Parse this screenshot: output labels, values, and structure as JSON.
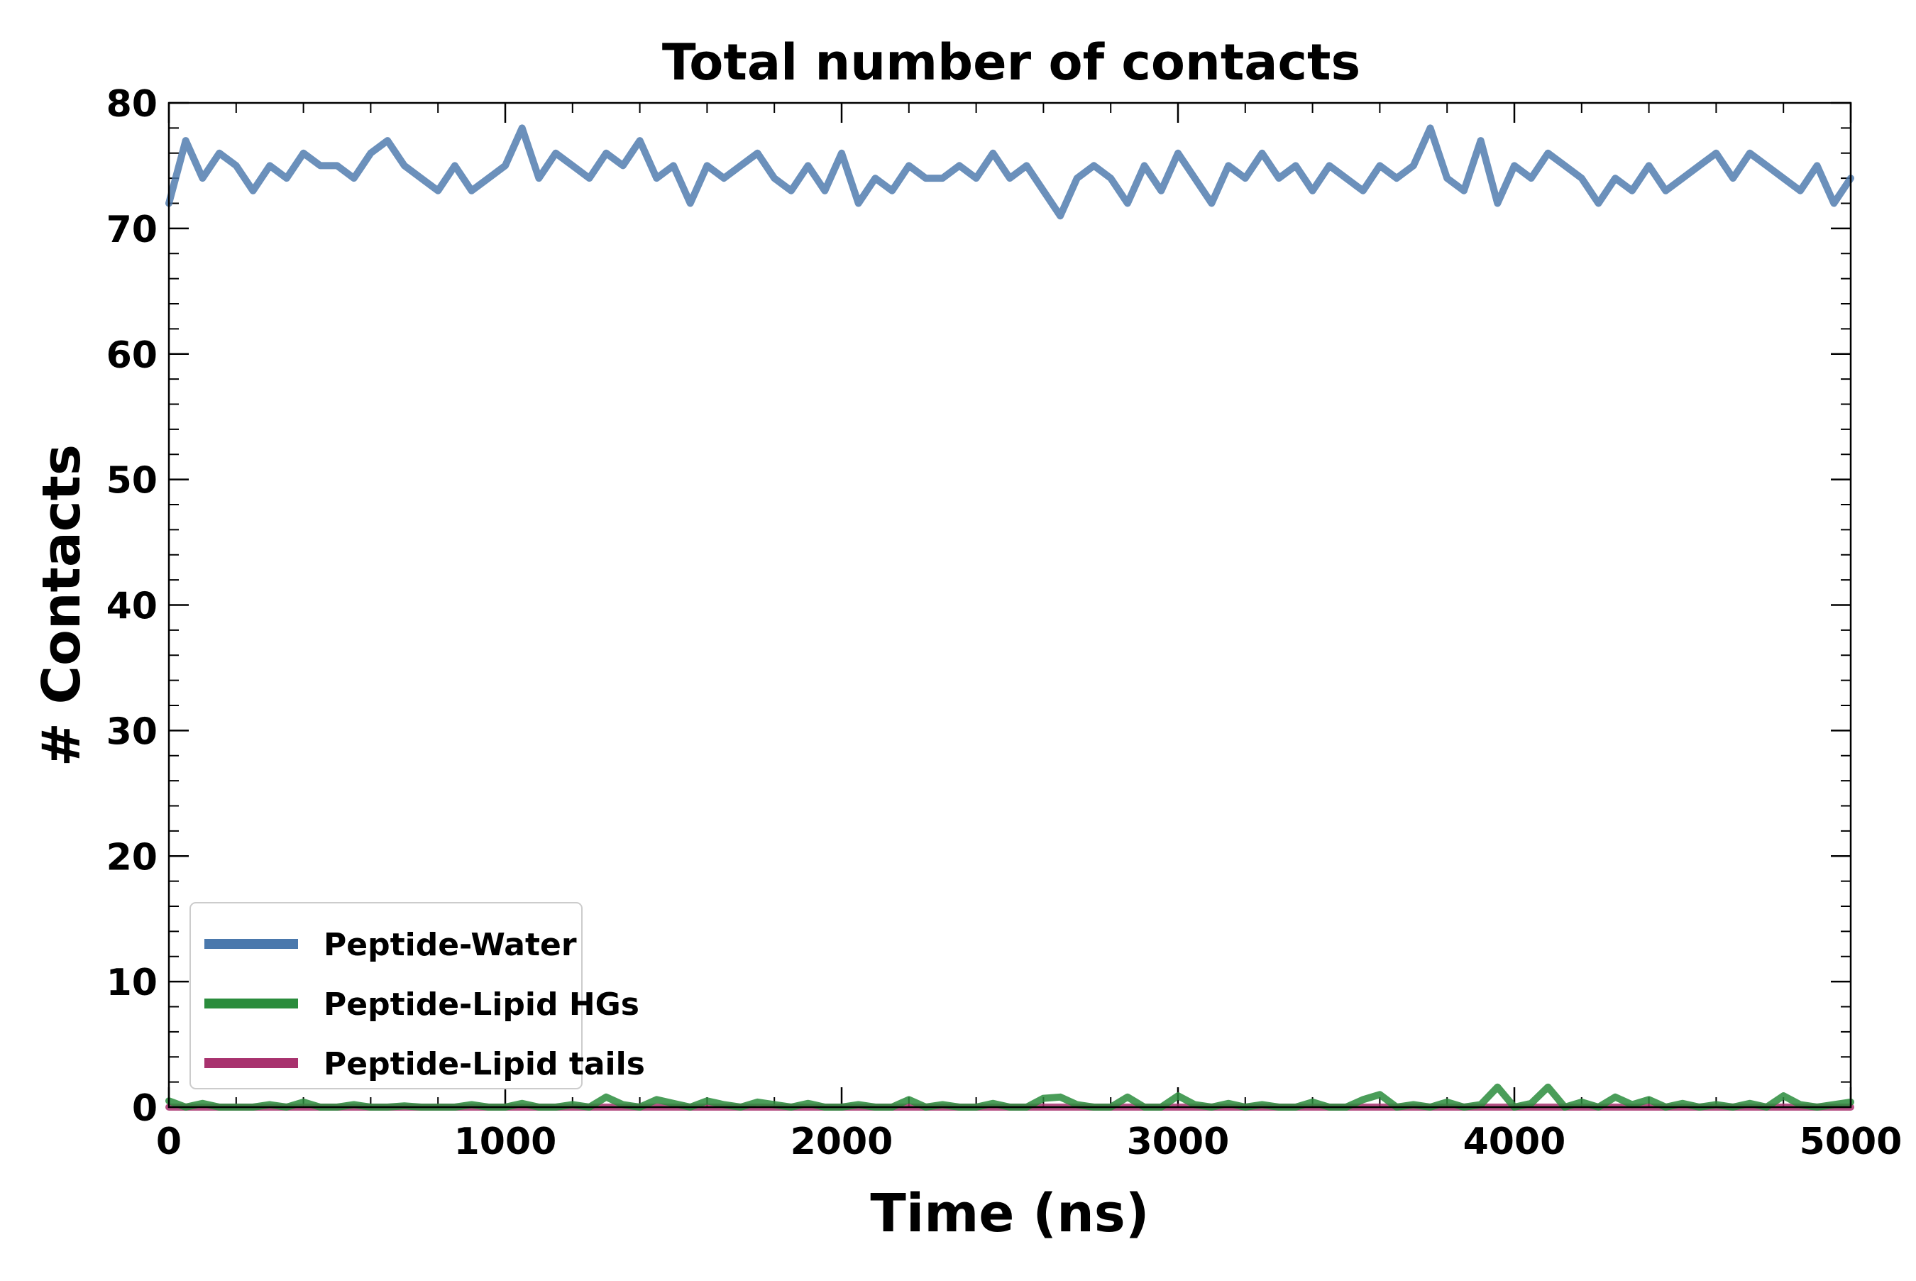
{
  "chart_data": {
    "type": "line",
    "title": "Total number of contacts",
    "xlabel": "Time (ns)",
    "ylabel": "# Contacts",
    "xlim": [
      0,
      5000
    ],
    "ylim": [
      0,
      80
    ],
    "xticks": [
      "0",
      "1000",
      "2000",
      "3000",
      "4000",
      "5000"
    ],
    "yticks": [
      "0",
      "10",
      "20",
      "30",
      "40",
      "50",
      "60",
      "70",
      "80"
    ],
    "grid": false,
    "legend_position": "lower-left",
    "series": [
      {
        "name": "Peptide-Water",
        "color": "#4a78ac",
        "x": [
          0,
          50,
          100,
          150,
          200,
          250,
          300,
          350,
          400,
          450,
          500,
          550,
          600,
          650,
          700,
          750,
          800,
          850,
          900,
          950,
          1000,
          1050,
          1100,
          1150,
          1200,
          1250,
          1300,
          1350,
          1400,
          1450,
          1500,
          1550,
          1600,
          1650,
          1700,
          1750,
          1800,
          1850,
          1900,
          1950,
          2000,
          2050,
          2100,
          2150,
          2200,
          2250,
          2300,
          2350,
          2400,
          2450,
          2500,
          2550,
          2600,
          2650,
          2700,
          2750,
          2800,
          2850,
          2900,
          2950,
          3000,
          3050,
          3100,
          3150,
          3200,
          3250,
          3300,
          3350,
          3400,
          3450,
          3500,
          3550,
          3600,
          3650,
          3700,
          3750,
          3800,
          3850,
          3900,
          3950,
          4000,
          4050,
          4100,
          4150,
          4200,
          4250,
          4300,
          4350,
          4400,
          4450,
          4500,
          4550,
          4600,
          4650,
          4700,
          4750,
          4800,
          4850,
          4900,
          4950,
          5000
        ],
        "values": [
          72,
          77,
          74,
          76,
          75,
          73,
          75,
          74,
          76,
          75,
          75,
          74,
          76,
          77,
          75,
          74,
          73,
          75,
          73,
          74,
          75,
          78,
          74,
          76,
          75,
          74,
          76,
          75,
          77,
          74,
          75,
          72,
          75,
          74,
          75,
          76,
          74,
          73,
          75,
          73,
          76,
          72,
          74,
          73,
          75,
          74,
          74,
          75,
          74,
          76,
          74,
          75,
          73,
          71,
          74,
          75,
          74,
          72,
          75,
          73,
          76,
          74,
          72,
          75,
          74,
          76,
          74,
          75,
          73,
          75,
          74,
          73,
          75,
          74,
          75,
          78,
          74,
          73,
          77,
          72,
          75,
          74,
          76,
          75,
          74,
          72,
          74,
          73,
          75,
          73,
          74,
          75,
          76,
          74,
          76,
          75,
          74,
          73,
          75,
          72,
          74
        ]
      },
      {
        "name": "Peptide-Lipid HGs",
        "color": "#2a8c3c",
        "x": [
          0,
          50,
          100,
          150,
          200,
          250,
          300,
          350,
          400,
          450,
          500,
          550,
          600,
          650,
          700,
          750,
          800,
          850,
          900,
          950,
          1000,
          1050,
          1100,
          1150,
          1200,
          1250,
          1300,
          1350,
          1400,
          1450,
          1500,
          1550,
          1600,
          1650,
          1700,
          1750,
          1800,
          1850,
          1900,
          1950,
          2000,
          2050,
          2100,
          2150,
          2200,
          2250,
          2300,
          2350,
          2400,
          2450,
          2500,
          2550,
          2600,
          2650,
          2700,
          2750,
          2800,
          2850,
          2900,
          2950,
          3000,
          3050,
          3100,
          3150,
          3200,
          3250,
          3300,
          3350,
          3400,
          3450,
          3500,
          3550,
          3600,
          3650,
          3700,
          3750,
          3800,
          3850,
          3900,
          3950,
          4000,
          4050,
          4100,
          4150,
          4200,
          4250,
          4300,
          4350,
          4400,
          4450,
          4500,
          4550,
          4600,
          4650,
          4700,
          4750,
          4800,
          4850,
          4900,
          4950,
          5000
        ],
        "values": [
          0.5,
          0,
          0.3,
          0,
          0,
          0,
          0.2,
          0,
          0.4,
          0,
          0,
          0.2,
          0,
          0,
          0.1,
          0,
          0,
          0,
          0.2,
          0,
          0,
          0.3,
          0,
          0,
          0.2,
          0,
          0.8,
          0.2,
          0,
          0.6,
          0.3,
          0,
          0.5,
          0.2,
          0,
          0.4,
          0.2,
          0,
          0.3,
          0,
          0,
          0.2,
          0,
          0,
          0.6,
          0,
          0.2,
          0,
          0,
          0.3,
          0,
          0,
          0.7,
          0.8,
          0.2,
          0,
          0,
          0.8,
          0,
          0,
          0.9,
          0.2,
          0,
          0.3,
          0,
          0.2,
          0,
          0,
          0.4,
          0,
          0,
          0.6,
          1.0,
          0,
          0.2,
          0,
          0.4,
          0,
          0.2,
          1.6,
          0,
          0.3,
          1.6,
          0,
          0.4,
          0,
          0.8,
          0.2,
          0.6,
          0,
          0.3,
          0,
          0.2,
          0,
          0.3,
          0,
          0.9,
          0.2,
          0,
          0.2,
          0.4
        ]
      },
      {
        "name": "Peptide-Lipid tails",
        "color": "#a8326e",
        "x": [
          0,
          500,
          1000,
          1500,
          2000,
          2500,
          3000,
          3500,
          4000,
          4500,
          5000
        ],
        "values": [
          0,
          0,
          0,
          0,
          0,
          0,
          0,
          0,
          0,
          0,
          0
        ]
      }
    ]
  }
}
